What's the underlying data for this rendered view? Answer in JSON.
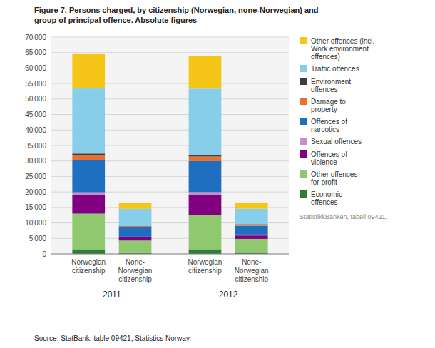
{
  "chart_data": {
    "type": "bar",
    "stacked": true,
    "title": "Figure 7. Persons charged, by citizenship (Norwegian, none-Norwegian) and\ngroup of principal offence. Absolute figures",
    "source": "Source: StatBank, table 09421, Statistics Norway.",
    "annotations": [
      "StatistikkBanken, tabell 09421,"
    ],
    "categories": [
      "Norwegian\ncitizenship",
      "None-\nNorwegian\ncitizenship",
      "Norwegian\ncitizenship",
      "None-\nNorwegian\ncitizenship"
    ],
    "group_labels": [
      "2011",
      "2012"
    ],
    "ylim": [
      0,
      70000
    ],
    "yticks": [
      0,
      {
        "value": 5000,
        "label": "5 000"
      },
      {
        "value": 10000,
        "label": "10 000"
      },
      {
        "value": 15000,
        "label": "15 000"
      },
      {
        "value": 20000,
        "label": "20 000"
      },
      {
        "value": 25000,
        "label": "25 000"
      },
      {
        "value": 30000,
        "label": "30 000"
      },
      {
        "value": 35000,
        "label": "35 000"
      },
      {
        "value": 40000,
        "label": "40 000"
      },
      {
        "value": 45000,
        "label": "45 000"
      },
      {
        "value": 50000,
        "label": "50 000"
      },
      {
        "value": 55000,
        "label": "55 000"
      },
      {
        "value": 60000,
        "label": "60 000"
      },
      {
        "value": 65000,
        "label": "65 000"
      },
      {
        "value": 70000,
        "label": "70 000"
      }
    ],
    "grid": true,
    "legend": "right",
    "series": [
      {
        "name": "Economic\noffences",
        "color": "#2E7D32",
        "values": [
          1500,
          300,
          1500,
          350
        ]
      },
      {
        "name": "Other offences\nfor profit",
        "color": "#90C870",
        "values": [
          11500,
          4000,
          11000,
          4500
        ]
      },
      {
        "name": "Offences of\nviolence",
        "color": "#800080",
        "values": [
          6000,
          1000,
          6500,
          1100
        ]
      },
      {
        "name": "Sexual offences",
        "color": "#C890C8",
        "values": [
          900,
          250,
          950,
          300
        ]
      },
      {
        "name": "Offences of\nnarcotics",
        "color": "#1E6FBF",
        "values": [
          10500,
          3000,
          10000,
          2800
        ]
      },
      {
        "name": "Damage to\nproperty",
        "color": "#E87030",
        "values": [
          1500,
          400,
          1500,
          450
        ]
      },
      {
        "name": "Environment\noffences",
        "color": "#3D3D3D",
        "values": [
          500,
          100,
          400,
          100
        ]
      },
      {
        "name": "Traffic offences",
        "color": "#87CEEB",
        "values": [
          21000,
          5500,
          21500,
          5000
        ]
      },
      {
        "name": "Other offences (incl.\nWork environment\noffences)",
        "color": "#F5C518",
        "values": [
          11100,
          2000,
          10650,
          2000
        ]
      }
    ]
  }
}
